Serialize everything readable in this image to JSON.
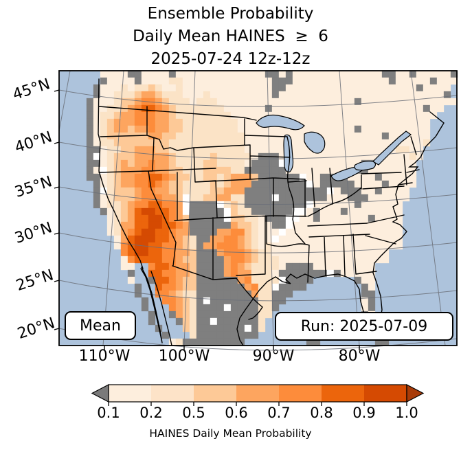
{
  "title": {
    "line1": "Ensemble Probability",
    "line2": "Daily Mean HAINES  ≥  6",
    "line3": "2025-07-24 12z-12z"
  },
  "map": {
    "mean_label": "Mean",
    "run_label": "Run: 2025-07-09",
    "lat_labels": [
      "45°N",
      "40°N",
      "35°N",
      "30°N",
      "25°N",
      "20°N"
    ],
    "lon_labels": [
      "110°W",
      "100°W",
      "90°W",
      "80°W"
    ],
    "ocean_color": "#adc3dc",
    "gridline_color": "#6b6f78",
    "border_color": "#000000",
    "grid": {
      "palette": {
        ".": null,
        "a": "#fdeedd",
        "b": "#fbe3c6",
        "c": "#fdc997",
        "d": "#fda55f",
        "e": "#fd8c3b",
        "f": "#ec650c",
        "h": "#d54a02",
        "g": "#7f7f7f",
        "w": "#ffffff"
      },
      "rows": [
        "......aaaaggaaaagaaaaaaaaaaaaaggagaaaaaaaaaaaaaggaagaaaaag",
        "......gaaaagaaaabbaaaaaaaaaaaaagggaaaaaaaaaaaaaagaaaaagaaa",
        ".....gaaababbcbaabaaaaaaaaaaaaaggaaaaaaaaaaaaaaaaaaagaaaa",
        ".....gaabbbcddcbbbaaabaaaaaaaaagaaaaaaaaaaaaaaaaaaaaaaaag",
        "....gaaabccdeedcbbbabbbaaaaaaaaaaaaaaaaaaaagaaaaaaaaaaaaaa",
        "....gaabbcdeffedcbbbbbbbaaaaaagaaaaaaaaaaaaaaaaaaaaaagaa..",
        "....gabbcddeeeddcbbbbbbbbaaaaaaaaaaaaaaaaaaaaaaaaaaaaaa..",
        "....gabcdddeeeddccbbbbbbbbaaaaaaaaaaaaaaaaaaaaaaaaaaaa...",
        "....gabcddcddeddccbbbbbbbbaaaaaaaaaaaaaaaaagaaaaaaaaaa...",
        "....gabccccccddccbbbbbbbbbbaaaaaaaaaaaaaaaaaaaagaaaaaa....",
        "....gabbccccccccbbbbbbbbbbbaaaaaaaaaaaaaaaaaaaaaaaaaab....",
        "....ggabbccdddccbbbbbbbbbbbaaaaaaaaaaaaaaaaaaaaaabbaa.....",
        "....gwabcccdddddcbbbbbcbbbbbagggaaaaaaaaaaaaaaaaaaaba.....",
        "....ggabcdcddeddcbbbbccbbbbaggggwaaaaaaaaaaaggaaaaaa......",
        "....gawbcdddeeddccbbbccccbbggggggaaaaaaaaaaggaaaaaaa......",
        "....ggabcddeeffedccbbccbcdddcggggggwaaggggaaaagaaaaa......",
        ".....gabcddeefedccbbbbcbcdddggggggggwagggggaaaagaaaa......",
        ".....gwbcccdeeddccbbbbccdddggggggggggggwagggaagaaaa.......",
        ".....gabcccdeeeddcwbbccddbbggggwgggggggaaagggaaaaaa.......",
        ".....gabbcdeeffeedwggggwbcbgggggggggwaaaaaagaaaaaa........",
        "......gabcdfhhffedwgggggwcbbggggggwwagaaagaaaaaaaa........",
        ".......abcdffhhfedcgggggwccbbagggwwaagaaaaaaagaaaa........",
        ".......abddffhhffedggggggdccbaaggwaaaaaaaaaaaaaaaa........",
        ".......abdefhhffeddggggddeecbaaawaaaaaaaaaaaaaaaaa........",
        "........adfhhhffedcbggddeedcbaawaaaaaaaaaaaaaaaaaa........",
        "........aefhhffeedcbgddeeedcbabaaaaaaaaaaaaaaaaaaa........",
        ".........efhhffeeddcgggdeeedcbbaaaaaaaaaaaaaaaaa..........",
        ".........aeffffeedccggggdeedcbbbaaaaaaaaaaaaaaaa..........",
        ".........aa..effeddcggggdedcbbbbaggggaaaaaaaaa............",
        "..........g..ffeeddcggggdeddbbbagggggggwgaaaaa............",
        "..........a..gffedccggggggdebbbbwgggg......gaa............",
        "...........g..feedccgggggggdebbwgggg........ga............",
        "...........g..eedcbbggggggggdbbggg..........gg............",
        "............g..eedcbgwgggggggbbgg...........ag............",
        "............g...edcbggggwggggbbg............ag............",
        ".............g..gdcbgggggggggbb.............ga............",
        ".............g...gcbggwggggggb...............g............",
        "..............g...cbgggggggwgb...............a............",
        "...............g...bggggggggg................gg...g.......",
        "................abggggggggg.........gg........gg.........."
      ]
    }
  },
  "colorbar": {
    "ticks": [
      "0.1",
      "0.2",
      "0.5",
      "0.6",
      "0.7",
      "0.8",
      "0.9",
      "1.0"
    ],
    "segment_colors": [
      "#fdeedd",
      "#fde3c8",
      "#fdc997",
      "#fda55f",
      "#fd8c3b",
      "#ec650c",
      "#d54a02"
    ],
    "under_color": "#7a7a7a",
    "over_color": "#a83b08",
    "label": "HAINES Daily Mean Probability"
  }
}
